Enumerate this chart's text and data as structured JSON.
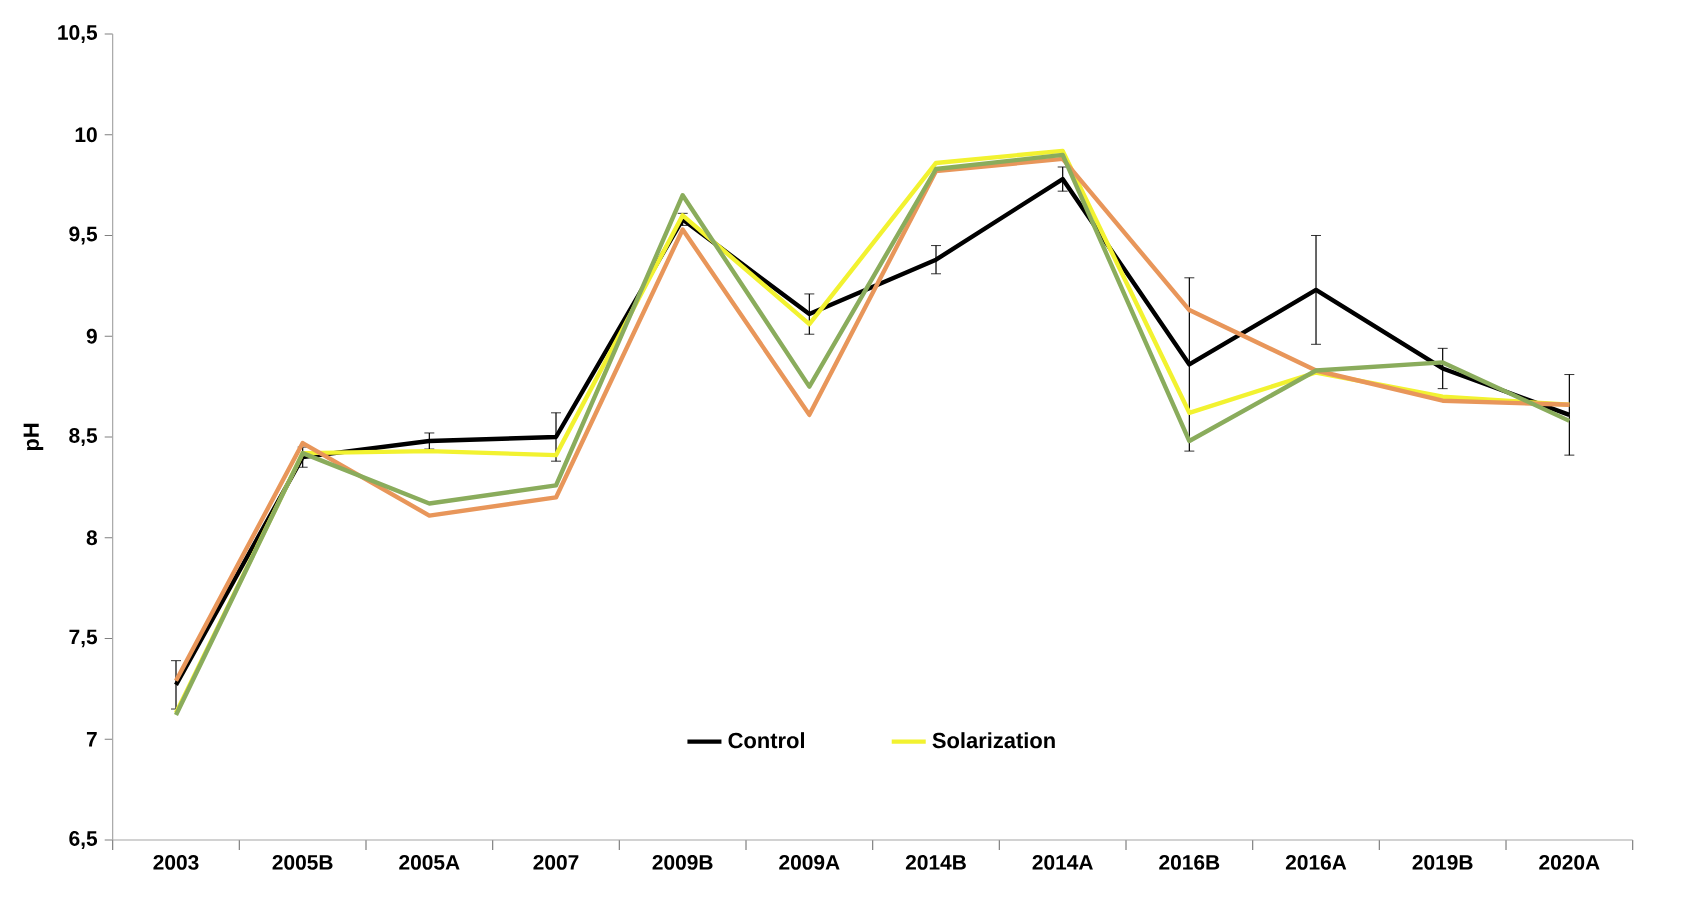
{
  "chart_data": {
    "type": "line",
    "ylabel": "pH",
    "categories": [
      "2003",
      "2005B",
      "2005A",
      "2007",
      "2009B",
      "2009A",
      "2014B",
      "2014A",
      "2016B",
      "2016A",
      "2019B",
      "2020A"
    ],
    "series": [
      {
        "name": "Control",
        "color": "#000000",
        "values": [
          7.27,
          8.4,
          8.48,
          8.5,
          9.58,
          9.11,
          9.38,
          9.78,
          8.86,
          9.23,
          8.84,
          8.61
        ],
        "errors": [
          0.12,
          0.05,
          0.04,
          0.12,
          0.03,
          0.1,
          0.07,
          0.06,
          0.43,
          0.27,
          0.1,
          0.2
        ]
      },
      {
        "name": "Solarization",
        "color": "#f2f230",
        "values": [
          7.13,
          8.42,
          8.43,
          8.41,
          9.6,
          9.06,
          9.86,
          9.92,
          8.62,
          8.82,
          8.7,
          8.66
        ]
      },
      {
        "color": "#e8965a",
        "values": [
          7.29,
          8.47,
          8.11,
          8.2,
          9.53,
          8.61,
          9.82,
          9.88,
          9.13,
          8.83,
          8.68,
          8.66
        ]
      },
      {
        "color": "#8aac5c",
        "values": [
          7.12,
          8.42,
          8.17,
          8.26,
          9.7,
          8.75,
          9.83,
          9.9,
          8.48,
          8.83,
          8.87,
          8.58
        ]
      }
    ],
    "ylim": [
      6.5,
      10.5
    ],
    "yticks": [
      {
        "value": 6.5,
        "label": "6,5"
      },
      7,
      {
        "value": 7.5,
        "label": "7,5"
      },
      8,
      {
        "value": 8.5,
        "label": "8,5"
      },
      9,
      {
        "value": 9.5,
        "label": "9,5"
      },
      10,
      {
        "value": 10.5,
        "label": "10,5"
      }
    ],
    "legend": "bottom",
    "marker": "none",
    "line_style": "solid",
    "grid": false
  }
}
